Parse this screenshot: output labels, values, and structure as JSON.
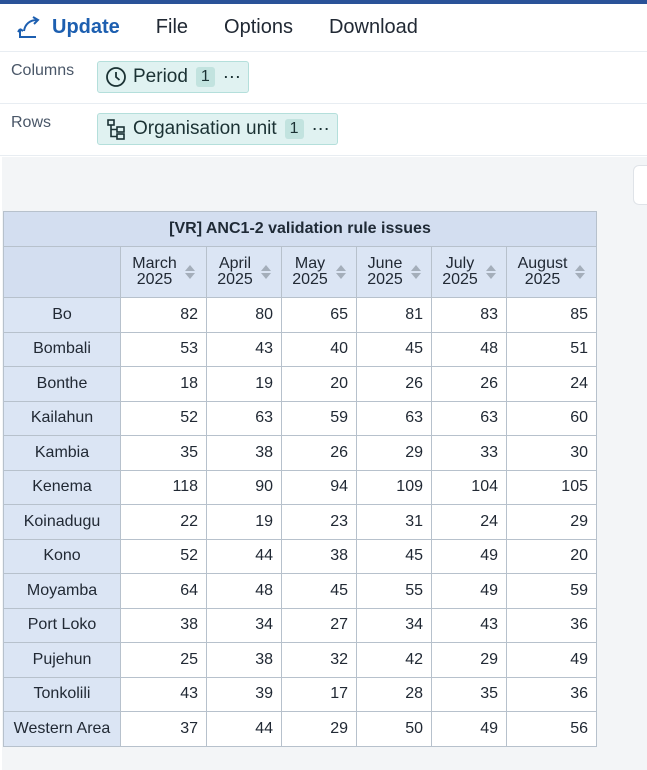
{
  "menubar": {
    "update_label": "Update",
    "items": [
      "File",
      "Options",
      "Download"
    ]
  },
  "layout": {
    "columns": {
      "label": "Columns",
      "chip": {
        "icon": "clock-icon",
        "label": "Period",
        "count": "1",
        "more": "⋯"
      }
    },
    "rows": {
      "label": "Rows",
      "chip": {
        "icon": "hierarchy-icon",
        "label": "Organisation unit",
        "count": "1",
        "more": "⋯"
      }
    }
  },
  "colors": {
    "accent": "#1d5fb0",
    "chip_bg": "#e0f2f1",
    "header_bg": "#dbe5f4"
  },
  "table": {
    "title": "[VR] ANC1-2 validation rule issues",
    "columns": [
      [
        "March",
        "2025"
      ],
      [
        "April",
        "2025"
      ],
      [
        "May",
        "2025"
      ],
      [
        "June",
        "2025"
      ],
      [
        "July",
        "2025"
      ],
      [
        "August",
        "2025"
      ]
    ],
    "rows": [
      {
        "name": "Bo",
        "values": [
          "82",
          "80",
          "65",
          "81",
          "83",
          "85"
        ]
      },
      {
        "name": "Bombali",
        "values": [
          "53",
          "43",
          "40",
          "45",
          "48",
          "51"
        ]
      },
      {
        "name": "Bonthe",
        "values": [
          "18",
          "19",
          "20",
          "26",
          "26",
          "24"
        ]
      },
      {
        "name": "Kailahun",
        "values": [
          "52",
          "63",
          "59",
          "63",
          "63",
          "60"
        ]
      },
      {
        "name": "Kambia",
        "values": [
          "35",
          "38",
          "26",
          "29",
          "33",
          "30"
        ]
      },
      {
        "name": "Kenema",
        "values": [
          "118",
          "90",
          "94",
          "109",
          "104",
          "105"
        ]
      },
      {
        "name": "Koinadugu",
        "values": [
          "22",
          "19",
          "23",
          "31",
          "24",
          "29"
        ]
      },
      {
        "name": "Kono",
        "values": [
          "52",
          "44",
          "38",
          "45",
          "49",
          "20"
        ]
      },
      {
        "name": "Moyamba",
        "values": [
          "64",
          "48",
          "45",
          "55",
          "49",
          "59"
        ]
      },
      {
        "name": "Port Loko",
        "values": [
          "38",
          "34",
          "27",
          "34",
          "43",
          "36"
        ]
      },
      {
        "name": "Pujehun",
        "values": [
          "25",
          "38",
          "32",
          "42",
          "29",
          "49"
        ]
      },
      {
        "name": "Tonkolili",
        "values": [
          "43",
          "39",
          "17",
          "28",
          "35",
          "36"
        ]
      },
      {
        "name": "Western Area",
        "values": [
          "37",
          "44",
          "29",
          "50",
          "49",
          "56"
        ]
      }
    ]
  }
}
